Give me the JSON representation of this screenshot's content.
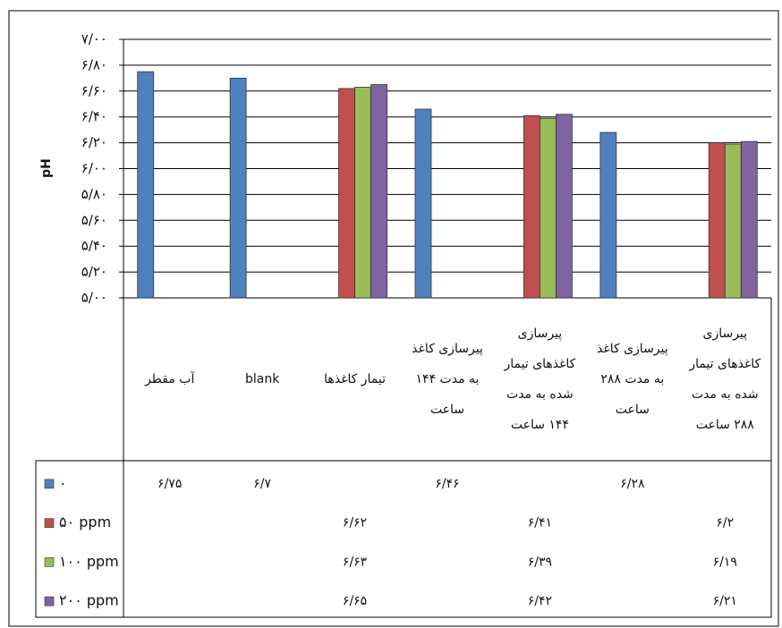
{
  "chart_data": {
    "type": "bar",
    "y_label": "pH",
    "categories": [
      "آب مقطر",
      "blank",
      "تیمار کاغذها",
      "پیرسازی کاغذ به مدت ۱۴۴ ساعت",
      "پیرسازی کاغذهای تیمار شده به مدت ۱۴۴ ساعت",
      "پیرسازی کاغذ به مدت ۲۸۸ ساعت",
      "پیرسازی کاغذهای تیمار شده به مدت ۲۸۸ ساعت"
    ],
    "series": [
      {
        "name": "۰",
        "color": "#4f81bd",
        "values": [
          6.75,
          6.7,
          null,
          6.46,
          null,
          6.28,
          null
        ],
        "value_labels": [
          "۶/۷۵",
          "۶/۷",
          null,
          "۶/۴۶",
          null,
          "۶/۲۸",
          null
        ]
      },
      {
        "name": "۵۰ ppm",
        "color": "#c0504d",
        "values": [
          null,
          null,
          6.62,
          null,
          6.41,
          null,
          6.2
        ],
        "value_labels": [
          null,
          null,
          "۶/۶۲",
          null,
          "۶/۴۱",
          null,
          "۶/۲"
        ]
      },
      {
        "name": "۱۰۰ ppm",
        "color": "#9bbb59",
        "values": [
          null,
          null,
          6.63,
          null,
          6.39,
          null,
          6.19
        ],
        "value_labels": [
          null,
          null,
          "۶/۶۳",
          null,
          "۶/۳۹",
          null,
          "۶/۱۹"
        ]
      },
      {
        "name": "۲۰۰ ppm",
        "color": "#8064a2",
        "values": [
          null,
          null,
          6.65,
          null,
          6.42,
          null,
          6.21
        ],
        "value_labels": [
          null,
          null,
          "۶/۶۵",
          null,
          "۶/۴۲",
          null,
          "۶/۲۱"
        ]
      }
    ],
    "ylim": [
      5,
      7
    ],
    "yticks": [
      {
        "value": 5,
        "label": "۵/۰۰"
      },
      {
        "value": 5.2,
        "label": "۵/۲۰"
      },
      {
        "value": 5.4,
        "label": "۵/۴۰"
      },
      {
        "value": 5.6,
        "label": "۵/۶۰"
      },
      {
        "value": 5.8,
        "label": "۵/۸۰"
      },
      {
        "value": 6,
        "label": "۶/۰۰"
      },
      {
        "value": 6.2,
        "label": "۶/۲۰"
      },
      {
        "value": 6.4,
        "label": "۶/۴۰"
      },
      {
        "value": 6.6,
        "label": "۶/۶۰"
      },
      {
        "value": 6.8,
        "label": "۶/۸۰"
      },
      {
        "value": 7,
        "label": "۷/۰۰"
      }
    ],
    "grid": true
  }
}
